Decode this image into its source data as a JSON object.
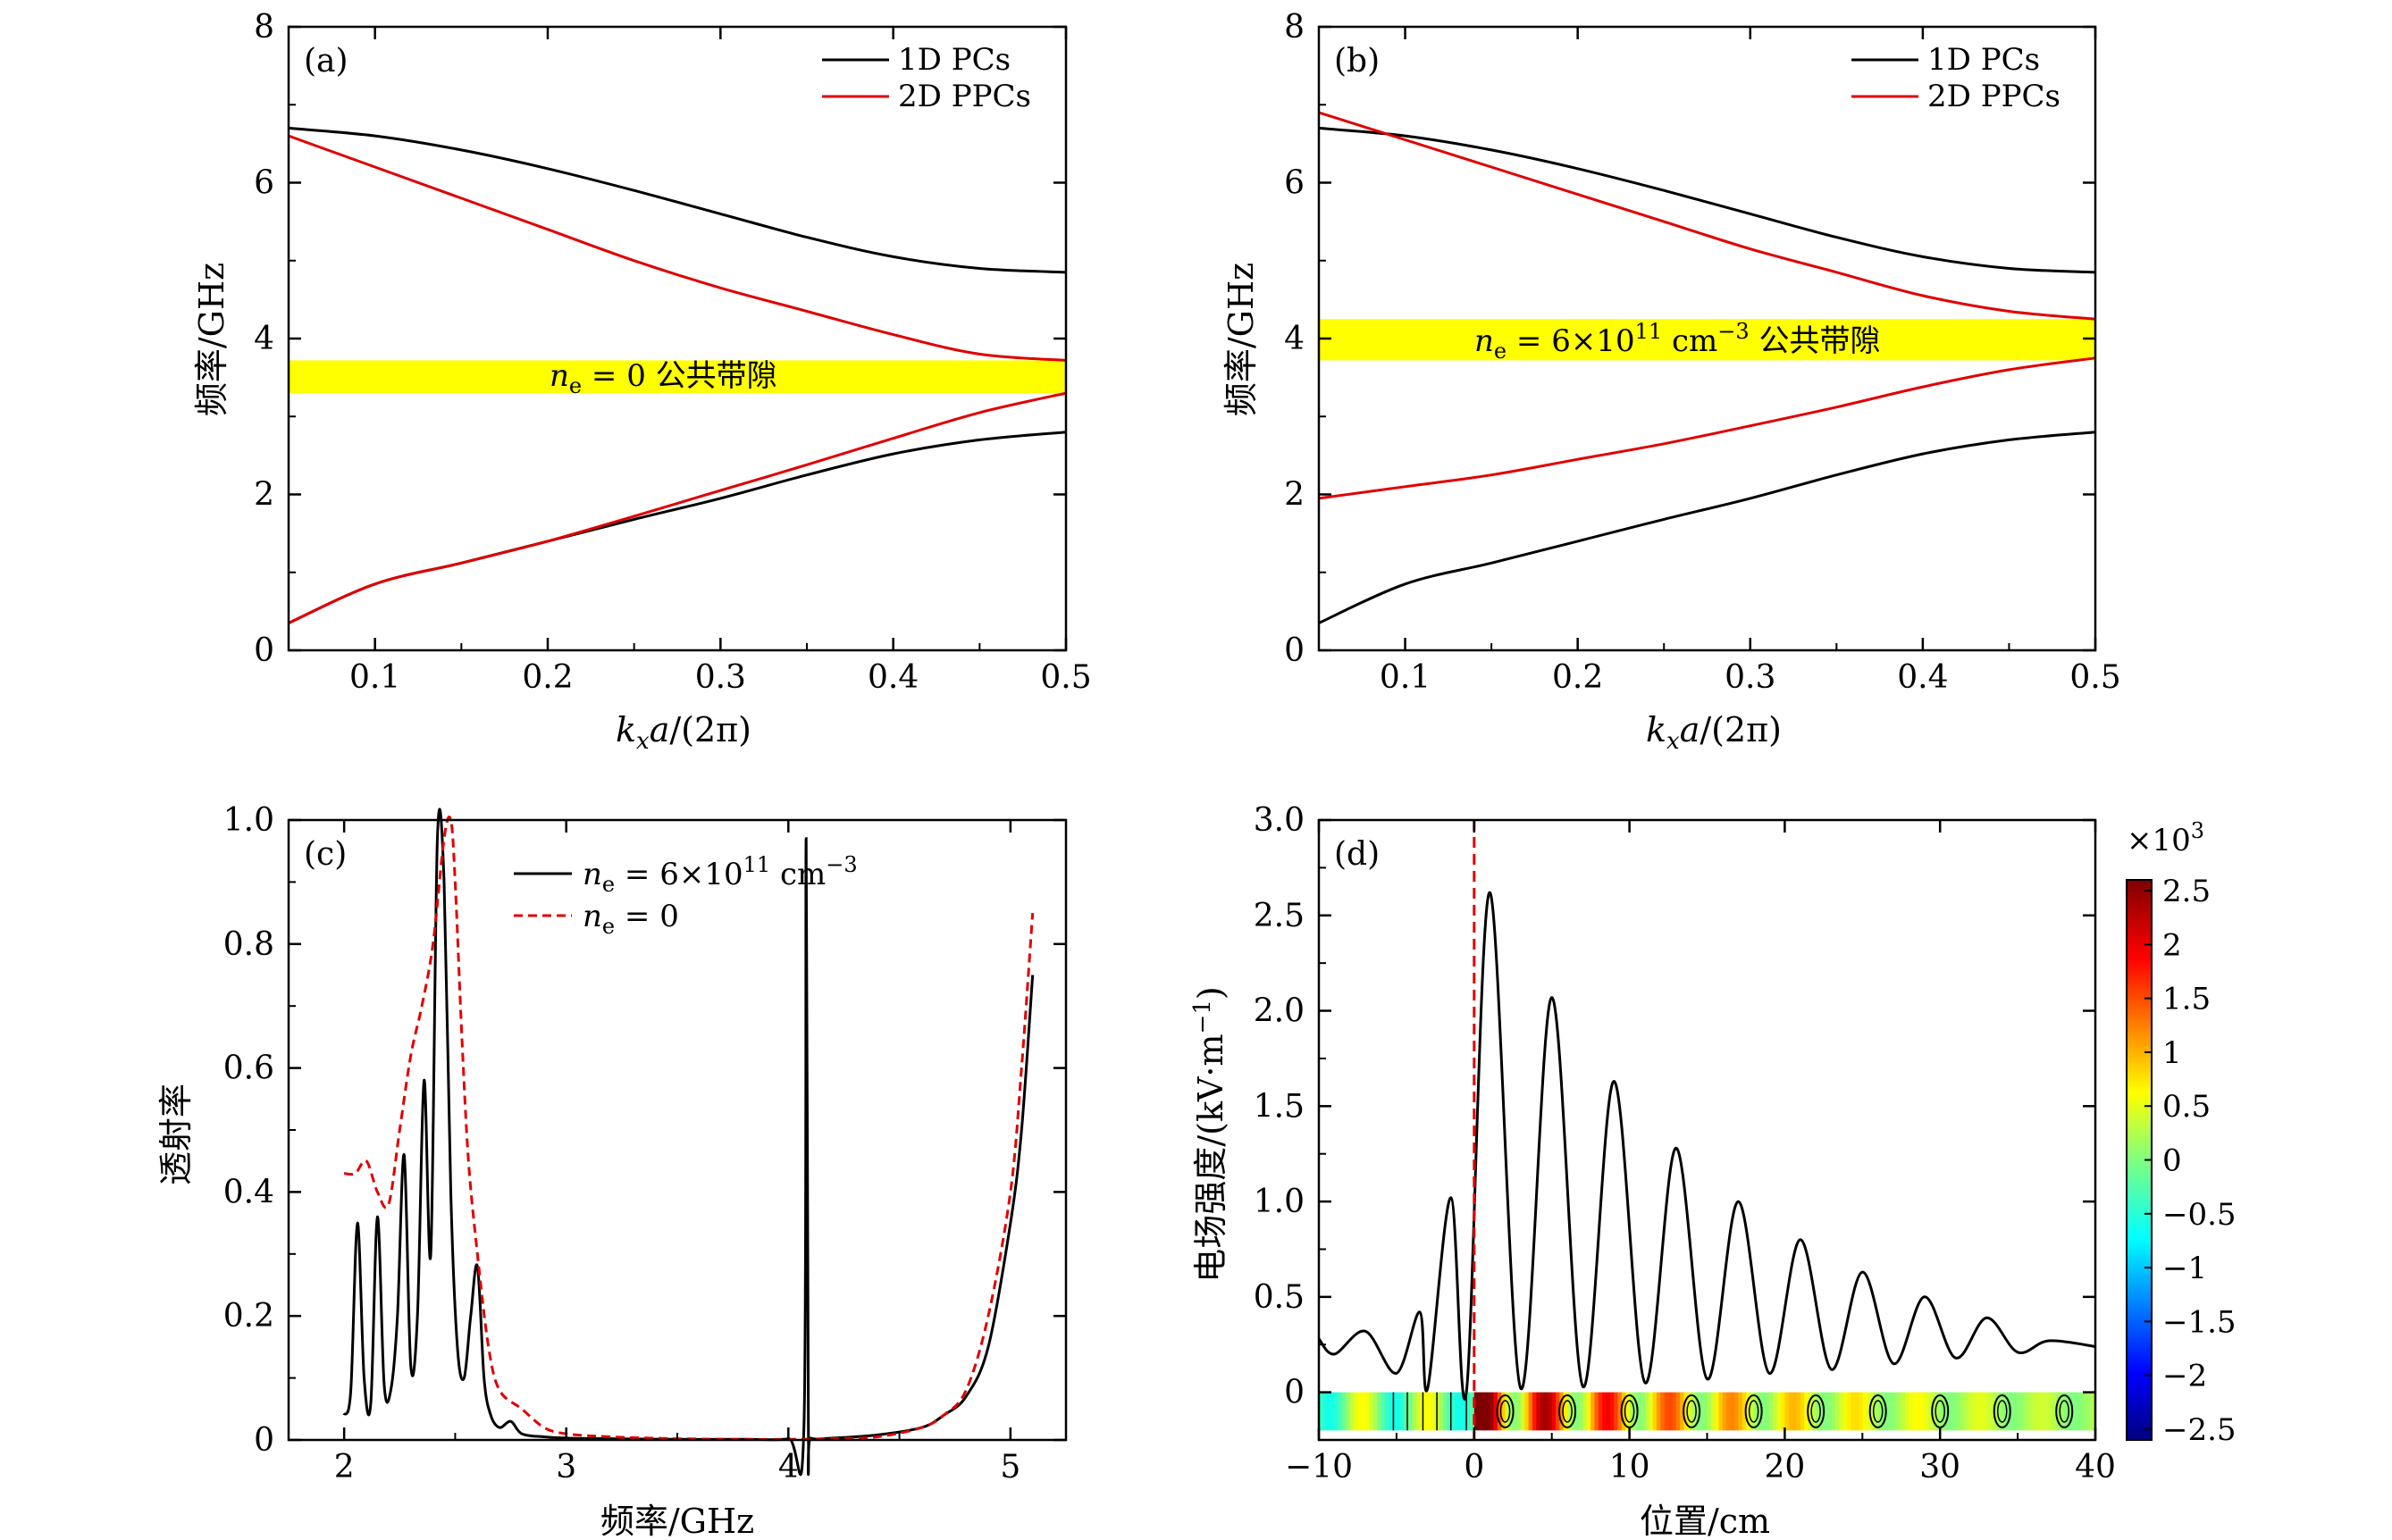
{
  "chart_data": [
    {
      "panel_label": "(a)",
      "type": "line",
      "xlabel": "k_x a/(2π)",
      "ylabel": "频率/GHz",
      "xlim": [
        0.05,
        0.5
      ],
      "ylim": [
        0,
        8
      ],
      "xticks": [
        0.1,
        0.2,
        0.3,
        0.4,
        0.5
      ],
      "yticks": [
        0,
        2,
        4,
        6,
        8
      ],
      "legend": {
        "placement": "top-right",
        "entries": [
          "1D PCs",
          "2D PPCs"
        ]
      },
      "band": {
        "y0": 3.3,
        "y1": 3.72,
        "label": "n_e = 0 公共带隙",
        "color": "#ffff00"
      },
      "series": [
        {
          "name": "1D PCs",
          "color": "#000000",
          "x": [
            0.05,
            0.1,
            0.15,
            0.2,
            0.25,
            0.3,
            0.35,
            0.4,
            0.45,
            0.5
          ],
          "y": [
            6.7,
            6.6,
            6.42,
            6.18,
            5.9,
            5.6,
            5.3,
            5.05,
            4.9,
            4.85
          ]
        },
        {
          "name": "1D PCs",
          "color": "#000000",
          "x": [
            0.05,
            0.1,
            0.15,
            0.2,
            0.25,
            0.3,
            0.35,
            0.4,
            0.45,
            0.5
          ],
          "y": [
            0.35,
            0.85,
            1.12,
            1.4,
            1.68,
            1.95,
            2.25,
            2.52,
            2.7,
            2.8
          ]
        },
        {
          "name": "2D PPCs",
          "color": "#e00000",
          "x": [
            0.05,
            0.1,
            0.15,
            0.2,
            0.25,
            0.3,
            0.35,
            0.4,
            0.45,
            0.5
          ],
          "y": [
            6.6,
            6.2,
            5.8,
            5.4,
            5.0,
            4.65,
            4.35,
            4.05,
            3.8,
            3.72
          ]
        },
        {
          "name": "2D PPCs",
          "color": "#e00000",
          "x": [
            0.05,
            0.1,
            0.15,
            0.2,
            0.25,
            0.3,
            0.35,
            0.4,
            0.45,
            0.5
          ],
          "y": [
            0.35,
            0.85,
            1.12,
            1.4,
            1.72,
            2.05,
            2.38,
            2.72,
            3.05,
            3.3
          ]
        }
      ]
    },
    {
      "panel_label": "(b)",
      "type": "line",
      "xlabel": "k_x a/(2π)",
      "ylabel": "频率/GHz",
      "xlim": [
        0.05,
        0.5
      ],
      "ylim": [
        0,
        8
      ],
      "xticks": [
        0.1,
        0.2,
        0.3,
        0.4,
        0.5
      ],
      "yticks": [
        0,
        2,
        4,
        6,
        8
      ],
      "legend": {
        "placement": "top-right",
        "entries": [
          "1D PCs",
          "2D PPCs"
        ]
      },
      "band": {
        "y0": 3.72,
        "y1": 4.25,
        "label": "n_e = 6×10^11 cm^−3 公共带隙",
        "color": "#ffff00"
      },
      "series": [
        {
          "name": "1D PCs",
          "color": "#000000",
          "x": [
            0.05,
            0.1,
            0.15,
            0.2,
            0.25,
            0.3,
            0.35,
            0.4,
            0.45,
            0.5
          ],
          "y": [
            6.7,
            6.6,
            6.42,
            6.18,
            5.9,
            5.6,
            5.3,
            5.05,
            4.9,
            4.85
          ]
        },
        {
          "name": "1D PCs",
          "color": "#000000",
          "x": [
            0.05,
            0.1,
            0.15,
            0.2,
            0.25,
            0.3,
            0.35,
            0.4,
            0.45,
            0.5
          ],
          "y": [
            0.35,
            0.85,
            1.12,
            1.4,
            1.68,
            1.95,
            2.25,
            2.52,
            2.7,
            2.8
          ]
        },
        {
          "name": "2D PPCs",
          "color": "#e00000",
          "x": [
            0.05,
            0.1,
            0.15,
            0.2,
            0.25,
            0.3,
            0.35,
            0.4,
            0.45,
            0.5
          ],
          "y": [
            6.9,
            6.55,
            6.2,
            5.85,
            5.5,
            5.15,
            4.85,
            4.55,
            4.35,
            4.25
          ]
        },
        {
          "name": "2D PPCs",
          "color": "#e00000",
          "x": [
            0.05,
            0.1,
            0.15,
            0.2,
            0.25,
            0.3,
            0.35,
            0.4,
            0.45,
            0.5
          ],
          "y": [
            1.95,
            2.1,
            2.25,
            2.45,
            2.65,
            2.88,
            3.12,
            3.38,
            3.6,
            3.75
          ]
        }
      ]
    },
    {
      "panel_label": "(c)",
      "type": "line",
      "xlabel": "频率/GHz",
      "ylabel": "透射率",
      "xlim": [
        1.75,
        5.25
      ],
      "ylim": [
        0,
        1.0
      ],
      "xticks": [
        2,
        3,
        4,
        5
      ],
      "yticks": [
        0,
        0.2,
        0.4,
        0.6,
        0.8,
        1.0
      ],
      "legend": {
        "placement": "top-center",
        "entries": [
          "n_e = 6×10^11 cm^−3",
          "n_e = 0"
        ]
      },
      "series": [
        {
          "name": "n_e = 6×10^11 cm^−3",
          "color": "#000000",
          "dash": "solid",
          "x": [
            2.0,
            2.03,
            2.06,
            2.09,
            2.12,
            2.15,
            2.18,
            2.21,
            2.24,
            2.27,
            2.3,
            2.33,
            2.36,
            2.39,
            2.42,
            2.45,
            2.48,
            2.51,
            2.54,
            2.57,
            2.6,
            2.63,
            2.66,
            2.7,
            2.75,
            2.8,
            2.9,
            3.0,
            3.2,
            3.5,
            3.8,
            4.0,
            4.07,
            4.08,
            4.09,
            4.1,
            4.2,
            4.4,
            4.6,
            4.7,
            4.8,
            4.9,
            5.0,
            5.05,
            5.1
          ],
          "y": [
            0.04,
            0.08,
            0.35,
            0.1,
            0.06,
            0.36,
            0.09,
            0.08,
            0.2,
            0.46,
            0.12,
            0.2,
            0.58,
            0.3,
            0.97,
            0.9,
            0.4,
            0.15,
            0.1,
            0.2,
            0.28,
            0.1,
            0.04,
            0.02,
            0.03,
            0.01,
            0.005,
            0.003,
            0.002,
            0.001,
            0.001,
            0.002,
            0.02,
            0.97,
            0.02,
            0.003,
            0.003,
            0.008,
            0.02,
            0.04,
            0.07,
            0.15,
            0.35,
            0.5,
            0.75
          ]
        },
        {
          "name": "n_e = 0",
          "color": "#e00000",
          "dash": "dashed",
          "x": [
            2.0,
            2.05,
            2.1,
            2.15,
            2.2,
            2.25,
            2.3,
            2.35,
            2.4,
            2.45,
            2.48,
            2.5,
            2.53,
            2.56,
            2.6,
            2.65,
            2.7,
            2.8,
            2.9,
            3.0,
            3.2,
            3.5,
            3.8,
            4.0,
            4.2,
            4.4,
            4.6,
            4.7,
            4.8,
            4.9,
            5.0,
            5.05,
            5.1
          ],
          "y": [
            0.43,
            0.43,
            0.45,
            0.4,
            0.38,
            0.5,
            0.62,
            0.7,
            0.8,
            0.97,
            1.0,
            0.9,
            0.65,
            0.45,
            0.3,
            0.15,
            0.08,
            0.05,
            0.02,
            0.01,
            0.005,
            0.002,
            0.001,
            0.001,
            0.002,
            0.005,
            0.02,
            0.04,
            0.08,
            0.2,
            0.4,
            0.6,
            0.85
          ]
        }
      ]
    },
    {
      "panel_label": "(d)",
      "type": "line",
      "xlabel": "位置/cm",
      "ylabel": "电场强度/(kV·m⁻¹)",
      "xlim": [
        -10,
        40
      ],
      "ylim": [
        -0.25,
        3.0
      ],
      "xticks": [
        -10,
        0,
        10,
        20,
        30,
        40
      ],
      "yticks": [
        0,
        0.5,
        1.0,
        1.5,
        2.0,
        2.5,
        3.0
      ],
      "vline": {
        "x": 0,
        "color": "#e00000",
        "dash": "dashed"
      },
      "peaks": [
        {
          "x": -10,
          "y": 0.28
        },
        {
          "x": -7,
          "y": 0.32
        },
        {
          "x": -3.5,
          "y": 0.42
        },
        {
          "x": -1.5,
          "y": 1.02
        },
        {
          "x": 1,
          "y": 2.62
        },
        {
          "x": 5,
          "y": 2.07
        },
        {
          "x": 9,
          "y": 1.63
        },
        {
          "x": 13,
          "y": 1.28
        },
        {
          "x": 17,
          "y": 1.0
        },
        {
          "x": 21,
          "y": 0.8
        },
        {
          "x": 25,
          "y": 0.63
        },
        {
          "x": 29,
          "y": 0.5
        },
        {
          "x": 33,
          "y": 0.39
        },
        {
          "x": 37,
          "y": 0.27
        },
        {
          "x": 40,
          "y": 0.24
        }
      ],
      "troughs": [
        {
          "x": -9,
          "y": 0.2
        },
        {
          "x": -5,
          "y": 0.1
        },
        {
          "x": -3,
          "y": 0.02
        },
        {
          "x": -0.5,
          "y": 0.0
        },
        {
          "x": 3,
          "y": 0.02
        },
        {
          "x": 7,
          "y": 0.03
        },
        {
          "x": 11,
          "y": 0.05
        },
        {
          "x": 15,
          "y": 0.07
        },
        {
          "x": 19,
          "y": 0.1
        },
        {
          "x": 23,
          "y": 0.12
        },
        {
          "x": 27,
          "y": 0.15
        },
        {
          "x": 31,
          "y": 0.18
        },
        {
          "x": 35,
          "y": 0.21
        }
      ],
      "field_strip": {
        "y0": -0.2,
        "y1": 0.0
      },
      "colorbar": {
        "multiplier": "×10³",
        "ticks": [
          2.5,
          2.0,
          1.5,
          1.0,
          0.5,
          0,
          -0.5,
          -1.0,
          -1.5,
          -2.0,
          -2.5
        ],
        "range": [
          -2.6,
          2.6
        ]
      }
    }
  ],
  "labels": {
    "ylabel_a": "频率/GHz",
    "ylabel_b": "频率/GHz",
    "ylabel_c": "透射率",
    "xlabel_c": "频率/GHz",
    "ylabel_d": "电场强度/(kV·m",
    "xlabel_d": "位置/cm",
    "cb_mult": "×10",
    "band_a_label": "公共带隙",
    "band_b_label": "公共带隙",
    "legend_ab_1": "1D PCs",
    "legend_ab_2": "2D PPCs",
    "panel_a": "(a)",
    "panel_b": "(b)",
    "panel_c": "(c)",
    "panel_d": "(d)"
  }
}
